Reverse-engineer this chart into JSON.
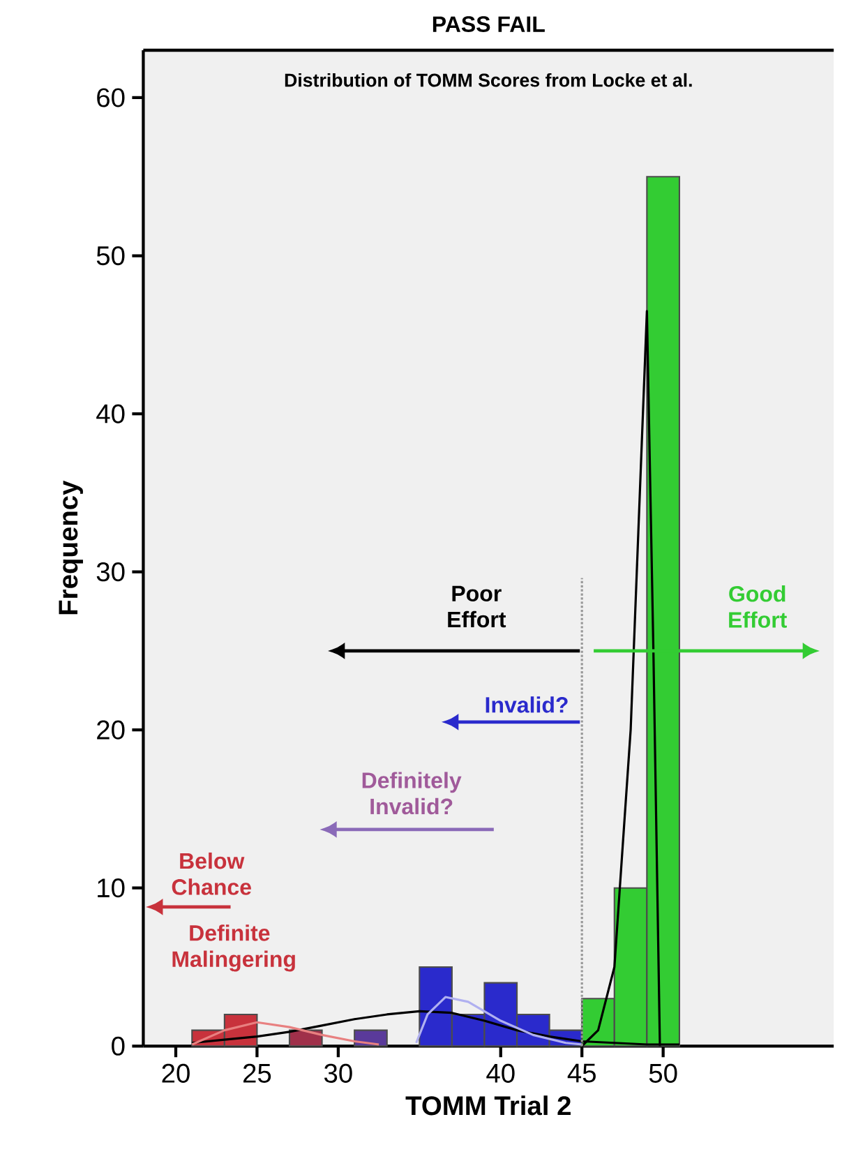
{
  "chart_data": {
    "type": "histogram",
    "title": "PASS FAIL",
    "subtitle": "Distribution of TOMM Scores from Locke et al.",
    "xlabel": "TOMM Trial 2",
    "ylabel": "Frequency",
    "bins": [
      21,
      23,
      25,
      27,
      29,
      31,
      33,
      35,
      37,
      39,
      41,
      43,
      45,
      47,
      49,
      51
    ],
    "values": [
      1,
      2,
      0,
      1,
      0,
      1,
      0,
      5,
      2,
      4,
      2,
      1,
      3,
      10,
      55
    ],
    "colors": [
      "#c8323c",
      "#c8323c",
      "#c8323c",
      "#a0304a",
      "#5a3a9a",
      "#5a3a9a",
      "#2a2acc",
      "#2a2acc",
      "#2a2acc",
      "#2a2acc",
      "#2a2acc",
      "#2a2acc",
      "#33cc33",
      "#33cc33",
      "#33cc33"
    ],
    "series": [
      {
        "type": "line",
        "color": "#000000",
        "x": [
          21,
          23,
          25,
          27,
          29,
          31,
          33,
          35,
          37,
          39,
          41,
          43,
          45,
          47,
          49,
          51
        ],
        "values": [
          0.2,
          0.4,
          0.6,
          0.9,
          1.3,
          1.7,
          2.0,
          2.2,
          2.1,
          1.6,
          1.0,
          0.6,
          0.3,
          0.2,
          0.1,
          0.1
        ]
      },
      {
        "type": "line",
        "color": "#e88080",
        "x": [
          21,
          23,
          25,
          27,
          29,
          31,
          32.5
        ],
        "values": [
          0.1,
          1.0,
          1.5,
          1.2,
          0.7,
          0.3,
          0.1
        ]
      },
      {
        "type": "line",
        "color": "#b0b0f0",
        "x": [
          34.8,
          35.5,
          36.6,
          38,
          40,
          42,
          44,
          45
        ],
        "values": [
          0.2,
          2.0,
          3.1,
          2.8,
          1.6,
          0.7,
          0.2,
          0.1
        ]
      },
      {
        "type": "line",
        "color": "#000000",
        "x": [
          45,
          46,
          47,
          48,
          49,
          49.4,
          49.8
        ],
        "values": [
          0,
          1,
          5,
          20,
          46.5,
          25,
          0
        ]
      }
    ],
    "xlim": [
      18,
      60.5
    ],
    "ylim": [
      0,
      63
    ],
    "xticks": [
      20,
      25,
      30,
      40,
      45,
      50
    ],
    "yticks": [
      0,
      10,
      20,
      30,
      40,
      50,
      60
    ],
    "ref_lines": [
      {
        "axis": "x",
        "value": 45,
        "line_style": "dotted",
        "color": "#999999"
      }
    ],
    "annotations": [
      "Poor Effort",
      "Good Effort",
      "Invalid?",
      "Definitely Invalid?",
      "Below Chance",
      "Definite Malingering"
    ],
    "grid": false
  }
}
